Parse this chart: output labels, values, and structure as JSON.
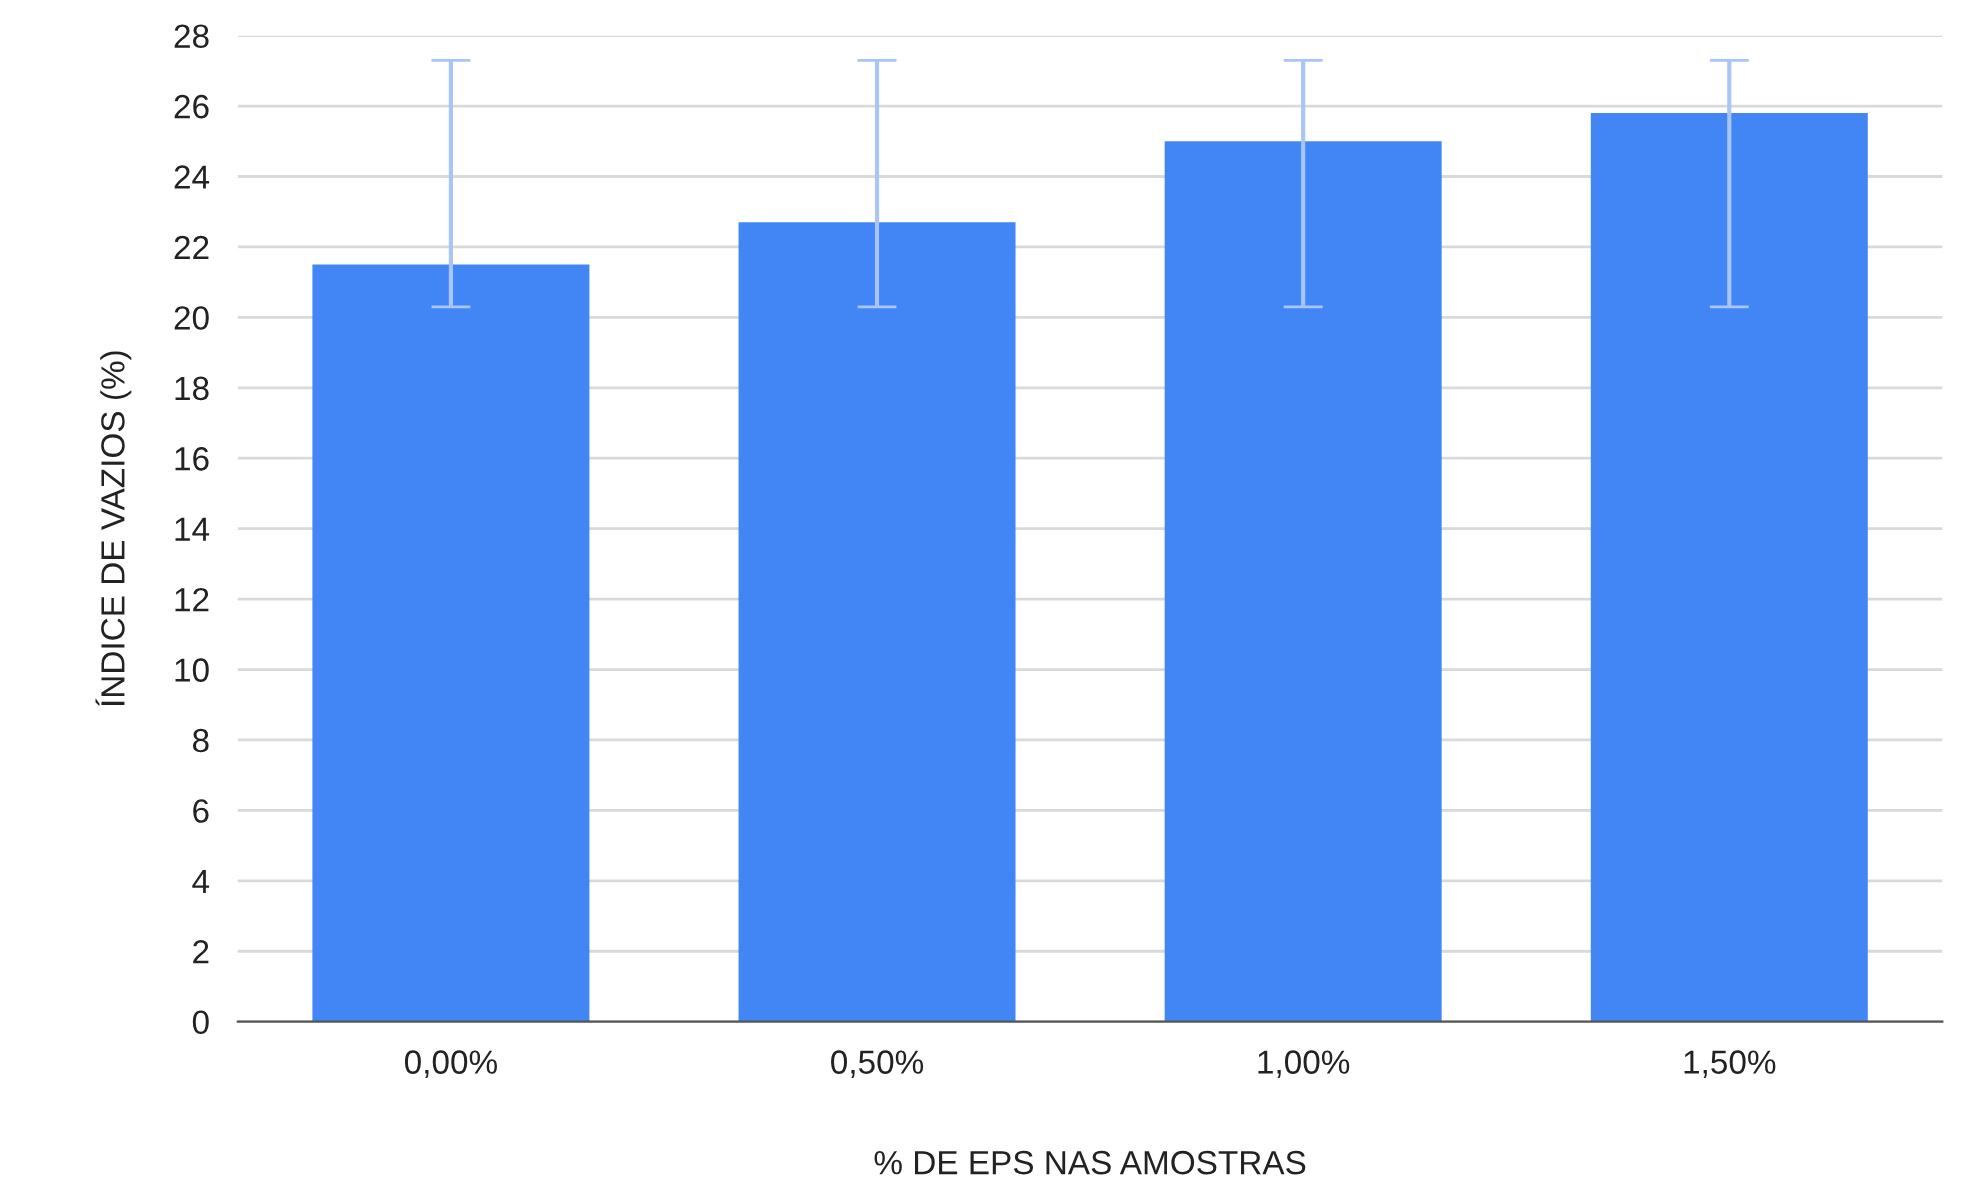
{
  "chart_data": {
    "type": "bar",
    "xlabel": "% DE EPS NAS AMOSTRAS",
    "ylabel": "ÍNDICE DE VAZIOS (%)",
    "categories": [
      "0,00%",
      "0,50%",
      "1,00%",
      "1,50%"
    ],
    "series": [
      {
        "color": "#4285f4",
        "values": [
          21.5,
          22.7,
          25.0,
          25.8
        ],
        "errors": [
          [
            20.3,
            27.3
          ],
          [
            20.3,
            27.3
          ],
          [
            20.3,
            27.3
          ],
          [
            20.3,
            27.3
          ]
        ]
      }
    ],
    "ylim": [
      0,
      28
    ],
    "yticks": [
      0,
      2,
      4,
      6,
      8,
      10,
      12,
      14,
      16,
      18,
      20,
      22,
      24,
      26,
      28
    ],
    "grid": "y",
    "legend": false
  }
}
